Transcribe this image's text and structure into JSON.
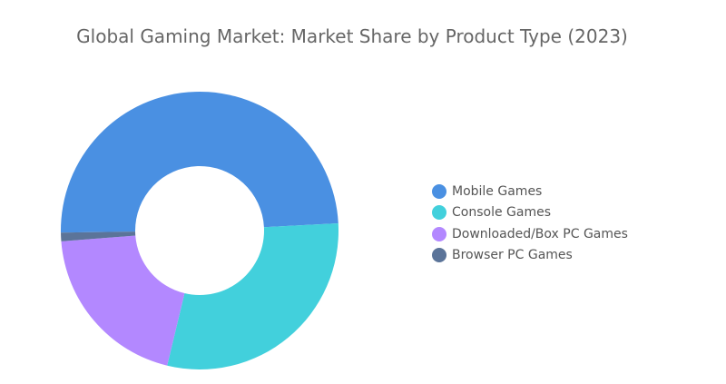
{
  "chart_data": {
    "type": "pie",
    "title": "Global Gaming Market: Market Share by Product Type (2023)",
    "donut": true,
    "legend_position": "right",
    "categories": [
      "Mobile Games",
      "Console Games",
      "Downloaded/Box PC Games",
      "Browser PC Games"
    ],
    "values": [
      49.4,
      29.6,
      20.0,
      1.0
    ],
    "colors": [
      "#4a90e2",
      "#42d0dc",
      "#b388ff",
      "#5b7499"
    ]
  }
}
